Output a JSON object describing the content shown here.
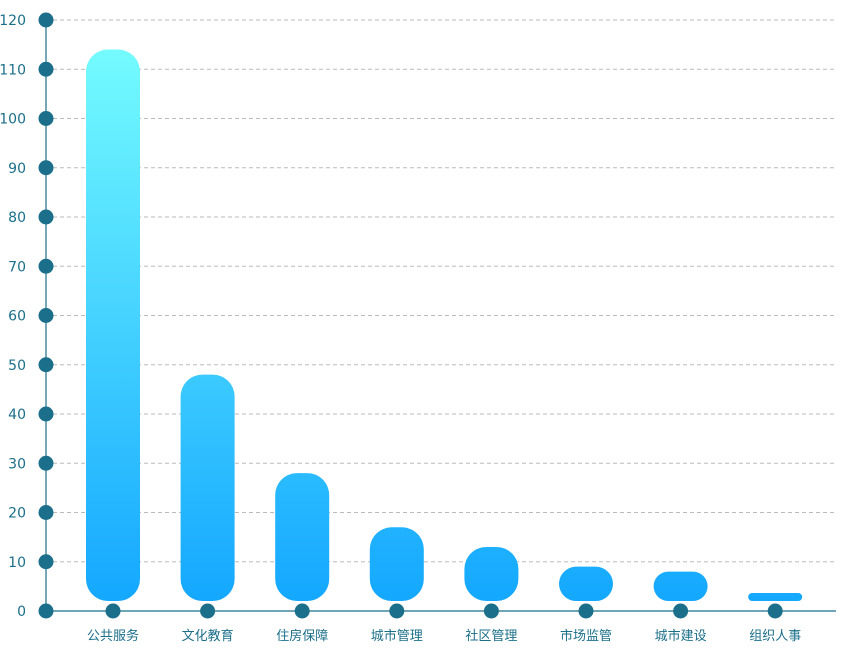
{
  "chart_data": {
    "type": "bar",
    "categories": [
      "公共服务",
      "文化教育",
      "住房保障",
      "城市管理",
      "社区管理",
      "市场监管",
      "城市建设",
      "组织人事"
    ],
    "values": [
      114,
      48,
      28,
      17,
      13,
      9,
      8,
      1
    ],
    "ylim": [
      0,
      120
    ],
    "yticks": [
      0,
      10,
      20,
      30,
      40,
      50,
      60,
      70,
      80,
      90,
      100,
      110,
      120
    ],
    "grid": true,
    "legend": "none"
  },
  "colors": {
    "axis": "#1b6f8a",
    "grid": "#bbbbbb",
    "bar_top": "#74fbff",
    "bar_bottom": "#12a6ff",
    "marker": "#1b6f8a",
    "tick_text": "#1b6f8a"
  }
}
